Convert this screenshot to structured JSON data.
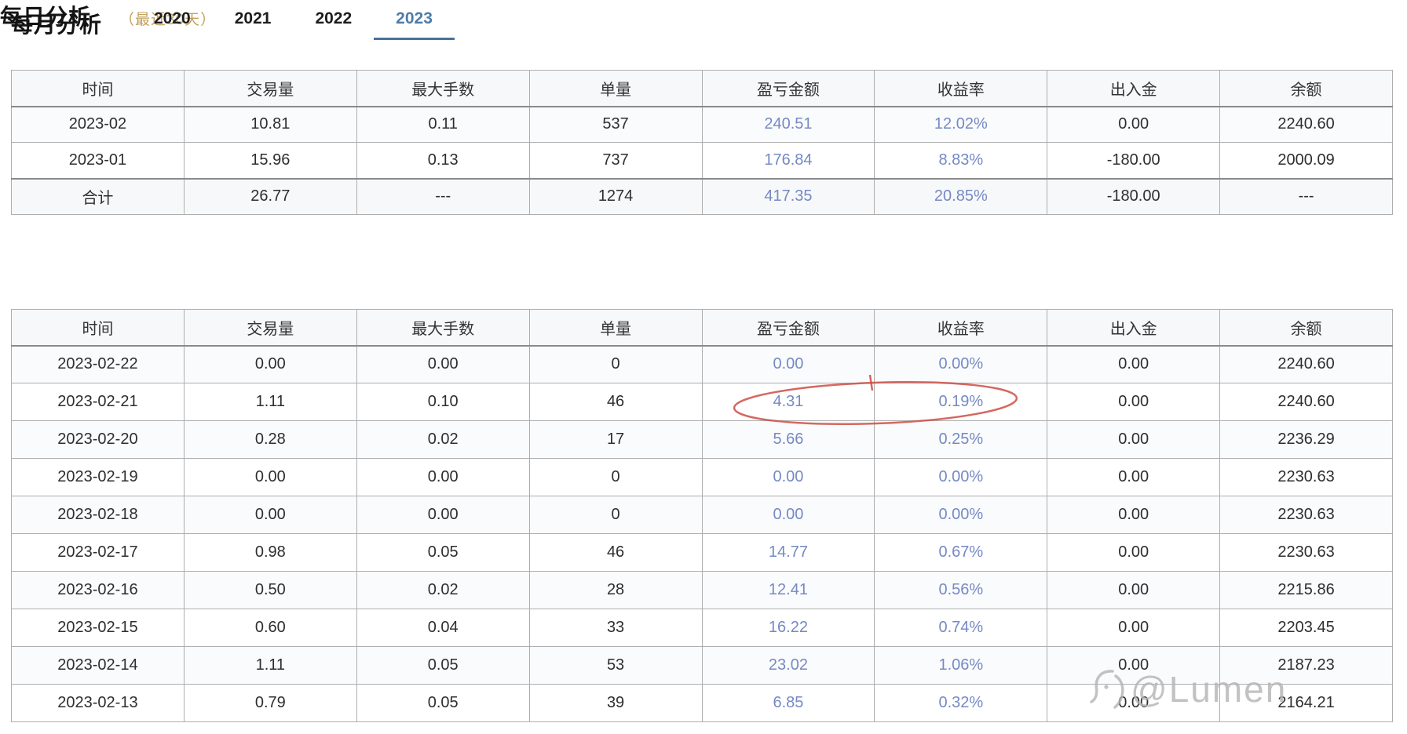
{
  "monthly_section": {
    "title": "每月分析",
    "tabs": [
      {
        "label": "2020",
        "active": false
      },
      {
        "label": "2021",
        "active": false
      },
      {
        "label": "2022",
        "active": false
      },
      {
        "label": "2023",
        "active": true
      }
    ],
    "columns": [
      "时间",
      "交易量",
      "最大手数",
      "单量",
      "盈亏金额",
      "收益率",
      "出入金",
      "余额"
    ],
    "rows": [
      [
        "2023-02",
        "10.81",
        "0.11",
        "537",
        "240.51",
        "12.02%",
        "0.00",
        "2240.60"
      ],
      [
        "2023-01",
        "15.96",
        "0.13",
        "737",
        "176.84",
        "8.83%",
        "-180.00",
        "2000.09"
      ],
      [
        "合计",
        "26.77",
        "---",
        "1274",
        "417.35",
        "20.85%",
        "-180.00",
        "---"
      ]
    ],
    "has_total": true,
    "blue_columns": [
      4,
      5
    ]
  },
  "daily_section": {
    "title": "每日分析",
    "subtitle": "（最近30天）",
    "columns": [
      "时间",
      "交易量",
      "最大手数",
      "单量",
      "盈亏金额",
      "收益率",
      "出入金",
      "余额"
    ],
    "rows": [
      [
        "2023-02-22",
        "0.00",
        "0.00",
        "0",
        "0.00",
        "0.00%",
        "0.00",
        "2240.60"
      ],
      [
        "2023-02-21",
        "1.11",
        "0.10",
        "46",
        "4.31",
        "0.19%",
        "0.00",
        "2240.60"
      ],
      [
        "2023-02-20",
        "0.28",
        "0.02",
        "17",
        "5.66",
        "0.25%",
        "0.00",
        "2236.29"
      ],
      [
        "2023-02-19",
        "0.00",
        "0.00",
        "0",
        "0.00",
        "0.00%",
        "0.00",
        "2230.63"
      ],
      [
        "2023-02-18",
        "0.00",
        "0.00",
        "0",
        "0.00",
        "0.00%",
        "0.00",
        "2230.63"
      ],
      [
        "2023-02-17",
        "0.98",
        "0.05",
        "46",
        "14.77",
        "0.67%",
        "0.00",
        "2230.63"
      ],
      [
        "2023-02-16",
        "0.50",
        "0.02",
        "28",
        "12.41",
        "0.56%",
        "0.00",
        "2215.86"
      ],
      [
        "2023-02-15",
        "0.60",
        "0.04",
        "33",
        "16.22",
        "0.74%",
        "0.00",
        "2203.45"
      ],
      [
        "2023-02-14",
        "1.11",
        "0.05",
        "53",
        "23.02",
        "1.06%",
        "0.00",
        "2187.23"
      ],
      [
        "2023-02-13",
        "0.79",
        "0.05",
        "39",
        "6.85",
        "0.32%",
        "0.00",
        "2164.21"
      ]
    ],
    "has_total": false,
    "blue_columns": [
      4,
      5
    ],
    "annotation": {
      "type": "hand-drawn-red-ellipse",
      "row": "2023-02-21",
      "circled_values": [
        "4.31",
        "0.19%"
      ]
    }
  },
  "watermark": {
    "text": "@Lumen"
  },
  "colors": {
    "value_blue": "#7589c5",
    "tab_active": "#4e7ca8",
    "subtitle_tan": "#c2a05c",
    "annotation_red": "#cb4e45"
  }
}
